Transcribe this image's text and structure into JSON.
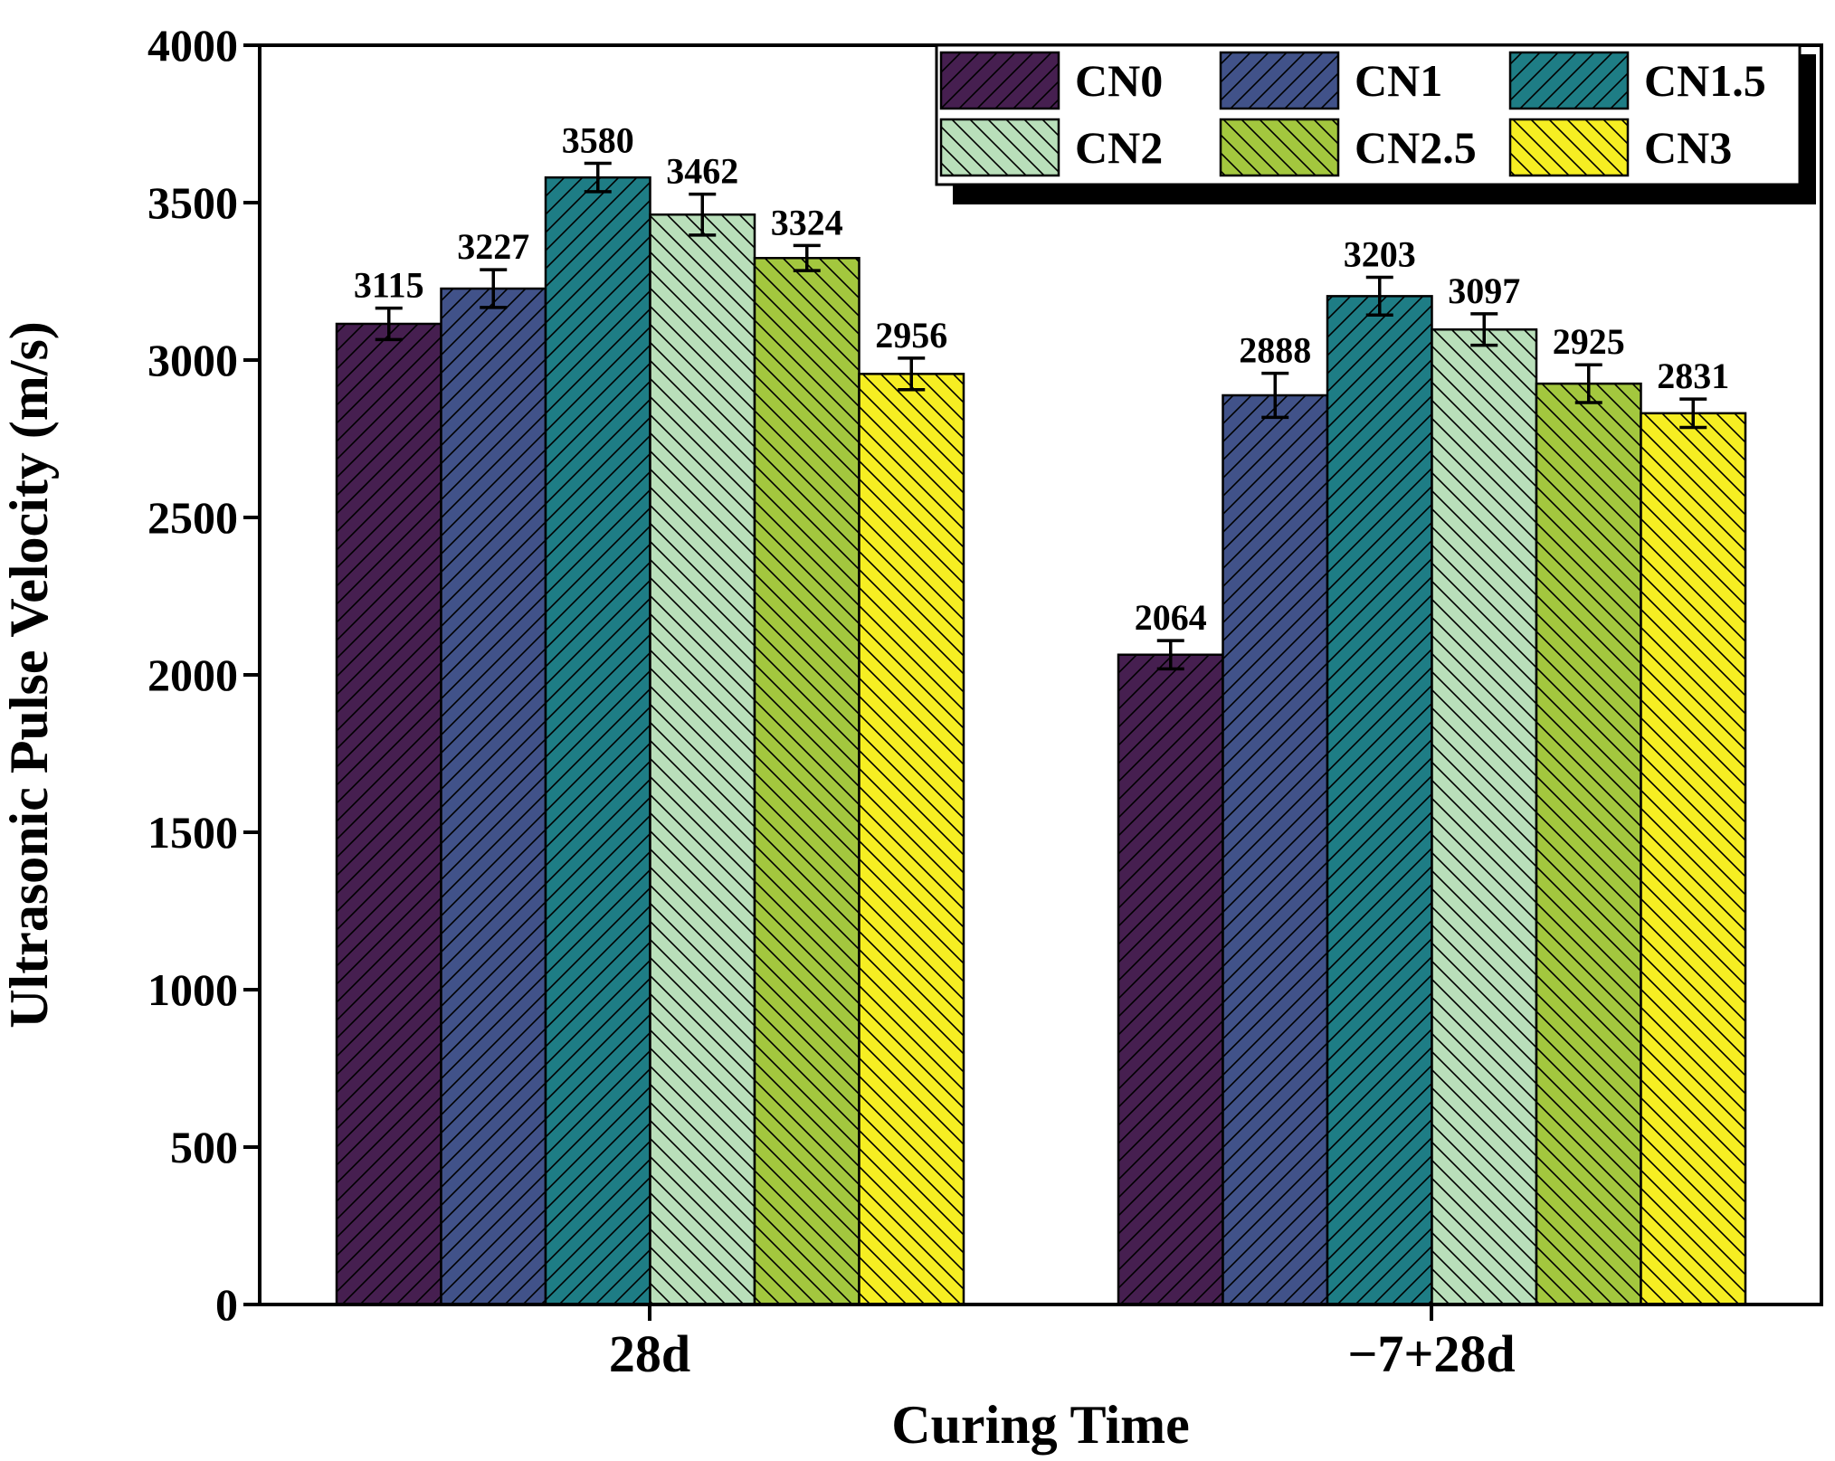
{
  "colors": {
    "CN0": "#461f50",
    "CN1": "#415289",
    "CN1.5": "#1e7d85",
    "CN2": "#b9dfba",
    "CN2.5": "#a3c73e",
    "CN3": "#f6ee22"
  },
  "chart_data": {
    "type": "bar",
    "title": "",
    "xlabel": "Curing Time",
    "ylabel": "Ultrasonic Pulse Velocity (m/s)",
    "ylim": [
      0,
      4000
    ],
    "yticks": [
      "0",
      "500",
      "1000",
      "1500",
      "2000",
      "2500",
      "3000",
      "3500",
      "4000"
    ],
    "categories": [
      "28d",
      "−7+28d"
    ],
    "legend_position": "top-right",
    "series": [
      {
        "name": "CN0",
        "values": [
          3115,
          2064
        ],
        "labels": [
          "3115",
          "2064"
        ],
        "errors": [
          50,
          45
        ],
        "hatch": "fwd"
      },
      {
        "name": "CN1",
        "values": [
          3227,
          2888
        ],
        "labels": [
          "3227",
          "2888"
        ],
        "errors": [
          60,
          70
        ],
        "hatch": "fwd"
      },
      {
        "name": "CN1.5",
        "values": [
          3580,
          3203
        ],
        "labels": [
          "3580",
          "3203"
        ],
        "errors": [
          45,
          60
        ],
        "hatch": "fwd"
      },
      {
        "name": "CN2",
        "values": [
          3462,
          3097
        ],
        "labels": [
          "3462",
          "3097"
        ],
        "errors": [
          65,
          50
        ],
        "hatch": "back"
      },
      {
        "name": "CN2.5",
        "values": [
          3324,
          2925
        ],
        "labels": [
          "3324",
          "2925"
        ],
        "errors": [
          40,
          60
        ],
        "hatch": "back"
      },
      {
        "name": "CN3",
        "values": [
          2956,
          2831
        ],
        "labels": [
          "2956",
          "2831"
        ],
        "errors": [
          50,
          45
        ],
        "hatch": "back"
      }
    ]
  }
}
